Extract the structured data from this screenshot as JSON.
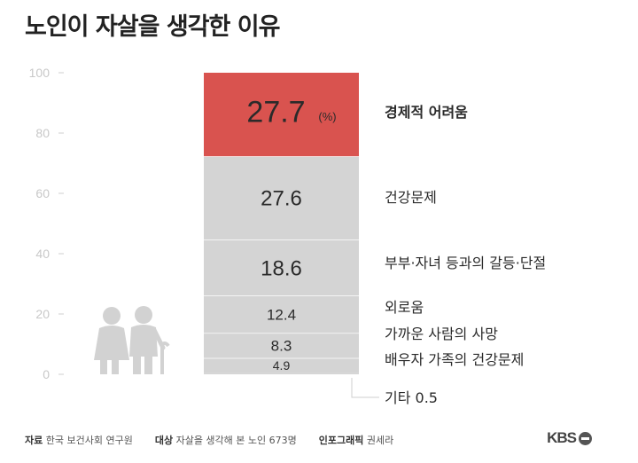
{
  "title": "노인이 자살을 생각한 이유",
  "chart_data": {
    "type": "bar",
    "subtype": "stacked-100-single",
    "ylim": [
      0,
      100
    ],
    "yticks": [
      "100",
      "80",
      "60",
      "40",
      "20",
      "0"
    ],
    "unit": "(%)",
    "highlight_color": "#d9534f",
    "bar_color": "#d4d4d4",
    "segments": [
      {
        "label": "기타",
        "value": 0.5,
        "value_text": "0.5"
      },
      {
        "label": "배우자 가족의 건강문제",
        "value": 4.9,
        "value_text": "4.9"
      },
      {
        "label": "가까운 사람의 사망",
        "value": 8.3,
        "value_text": "8.3"
      },
      {
        "label": "외로움",
        "value": 12.4,
        "value_text": "12.4"
      },
      {
        "label": "부부·자녀 등과의 갈등·단절",
        "value": 18.6,
        "value_text": "18.6"
      },
      {
        "label": "건강문제",
        "value": 27.6,
        "value_text": "27.6"
      },
      {
        "label": "경제적 어려움",
        "value": 27.7,
        "value_text": "27.7",
        "highlight": true
      }
    ]
  },
  "footer": {
    "source_label": "자료",
    "source_text": "한국 보건사회 연구원",
    "target_label": "대상",
    "target_text": "자살을 생각해 본 노인 673명",
    "credit_label": "인포그래픽",
    "credit_text": "권세라",
    "logo_text": "KBS"
  }
}
